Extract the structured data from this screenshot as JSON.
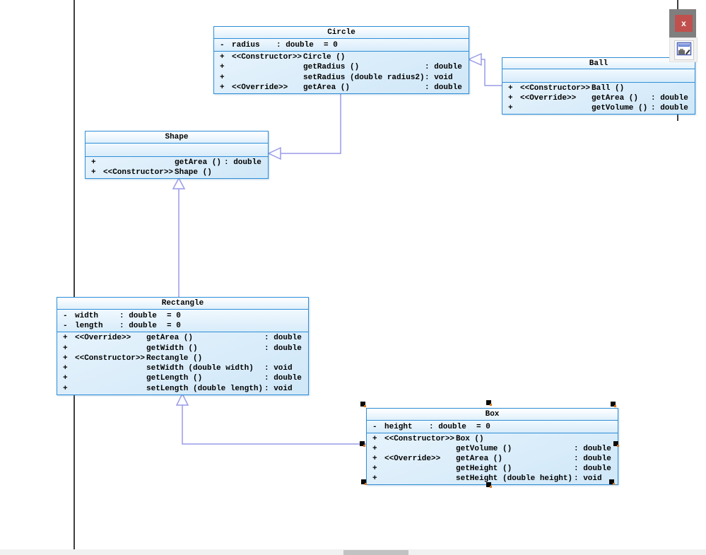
{
  "diagram": {
    "classes": [
      {
        "name": "Circle",
        "attributes": [
          {
            "visibility": "-",
            "name": "radius",
            "type": ": double",
            "default": "= 0"
          }
        ],
        "operations": [
          {
            "visibility": "+",
            "stereotype": "<<Constructor>>",
            "signature": "Circle ()",
            "returns": ""
          },
          {
            "visibility": "+",
            "stereotype": "",
            "signature": "getRadius ()",
            "returns": ": double"
          },
          {
            "visibility": "+",
            "stereotype": "",
            "signature": "setRadius (double radius2)",
            "returns": ": void"
          },
          {
            "visibility": "+",
            "stereotype": "<<Override>>",
            "signature": "getArea ()",
            "returns": ": double"
          }
        ],
        "selected": false
      },
      {
        "name": "Ball",
        "attributes": [],
        "operations": [
          {
            "visibility": "+",
            "stereotype": "<<Constructor>>",
            "signature": "Ball ()",
            "returns": ""
          },
          {
            "visibility": "+",
            "stereotype": "<<Override>>",
            "signature": "getArea ()",
            "returns": ": double"
          },
          {
            "visibility": "+",
            "stereotype": "",
            "signature": "getVolume ()",
            "returns": ": double"
          }
        ],
        "selected": false
      },
      {
        "name": "Shape",
        "attributes": [],
        "operations": [
          {
            "visibility": "+",
            "stereotype": "",
            "signature": "getArea ()",
            "returns": ": double"
          },
          {
            "visibility": "+",
            "stereotype": "<<Constructor>>",
            "signature": "Shape ()",
            "returns": ""
          }
        ],
        "selected": false
      },
      {
        "name": "Rectangle",
        "attributes": [
          {
            "visibility": "-",
            "name": "width",
            "type": ": double",
            "default": "= 0"
          },
          {
            "visibility": "-",
            "name": "length",
            "type": ": double",
            "default": "= 0"
          }
        ],
        "operations": [
          {
            "visibility": "+",
            "stereotype": "<<Override>>",
            "signature": "getArea ()",
            "returns": ": double"
          },
          {
            "visibility": "+",
            "stereotype": "",
            "signature": "getWidth ()",
            "returns": ": double"
          },
          {
            "visibility": "+",
            "stereotype": "<<Constructor>>",
            "signature": "Rectangle ()",
            "returns": ""
          },
          {
            "visibility": "+",
            "stereotype": "",
            "signature": "setWidth (double width)",
            "returns": ": void"
          },
          {
            "visibility": "+",
            "stereotype": "",
            "signature": "getLength ()",
            "returns": ": double"
          },
          {
            "visibility": "+",
            "stereotype": "",
            "signature": "setLength (double length)",
            "returns": ": void"
          }
        ],
        "selected": false
      },
      {
        "name": "Box",
        "attributes": [
          {
            "visibility": "-",
            "name": "height",
            "type": ": double",
            "default": "= 0"
          }
        ],
        "operations": [
          {
            "visibility": "+",
            "stereotype": "<<Constructor>>",
            "signature": "Box ()",
            "returns": ""
          },
          {
            "visibility": "+",
            "stereotype": "",
            "signature": "getVolume ()",
            "returns": ": double"
          },
          {
            "visibility": "+",
            "stereotype": "<<Override>>",
            "signature": "getArea ()",
            "returns": ": double"
          },
          {
            "visibility": "+",
            "stereotype": "",
            "signature": "getHeight ()",
            "returns": ": double"
          },
          {
            "visibility": "+",
            "stereotype": "",
            "signature": "setHeight (double height)",
            "returns": ": void"
          }
        ],
        "selected": true
      }
    ],
    "relationships": [
      {
        "type": "Generalization",
        "from": "Circle",
        "to": "Shape"
      },
      {
        "type": "Generalization",
        "from": "Ball",
        "to": "Circle"
      },
      {
        "type": "Generalization",
        "from": "Rectangle",
        "to": "Shape"
      },
      {
        "type": "Generalization",
        "from": "Box",
        "to": "Rectangle"
      }
    ]
  },
  "overlay": {
    "close_label": "x",
    "close_icon": "close-icon",
    "editor_icon": "window-editor-icon"
  },
  "colors": {
    "class_border": "#2e8ed7",
    "class_fill": "#d9edfb",
    "connector": "#9a9ae8",
    "close_button": "#c0504d",
    "selection_handle": "#0a0a0a",
    "selection_handle_accent": "#d9771e"
  }
}
